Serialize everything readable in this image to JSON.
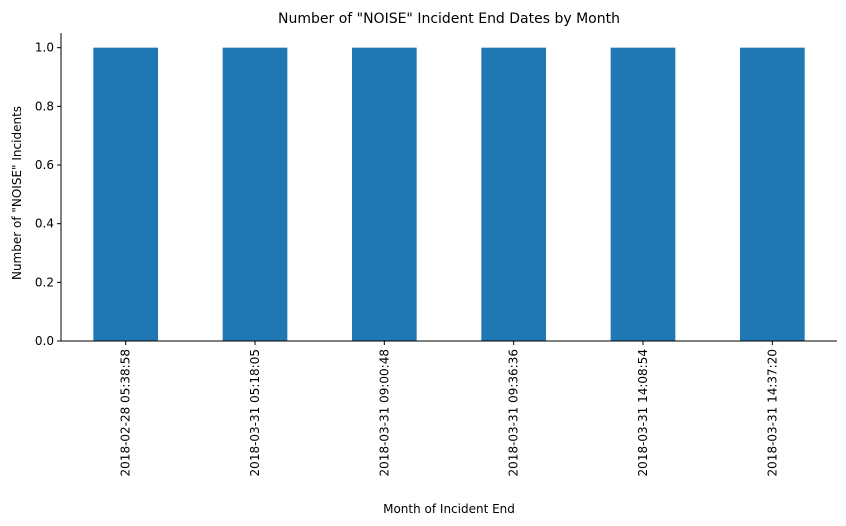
{
  "chart_data": {
    "type": "bar",
    "title": "Number of \"NOISE\" Incident End Dates by Month",
    "xlabel": "Month of Incident End",
    "ylabel": "Number of \"NOISE\" Incidents",
    "categories": [
      "2018-02-28 05:38:58",
      "2018-03-31 05:18:05",
      "2018-03-31 09:00:48",
      "2018-03-31 09:36:36",
      "2018-03-31 14:08:54",
      "2018-03-31 14:37:20"
    ],
    "values": [
      1,
      1,
      1,
      1,
      1,
      1
    ],
    "ylim": [
      0,
      1.05
    ],
    "yticks": [
      "0.0",
      "0.2",
      "0.4",
      "0.6",
      "0.8",
      "1.0"
    ],
    "grid": false,
    "legend": false,
    "bar_color": "#1f77b4"
  }
}
